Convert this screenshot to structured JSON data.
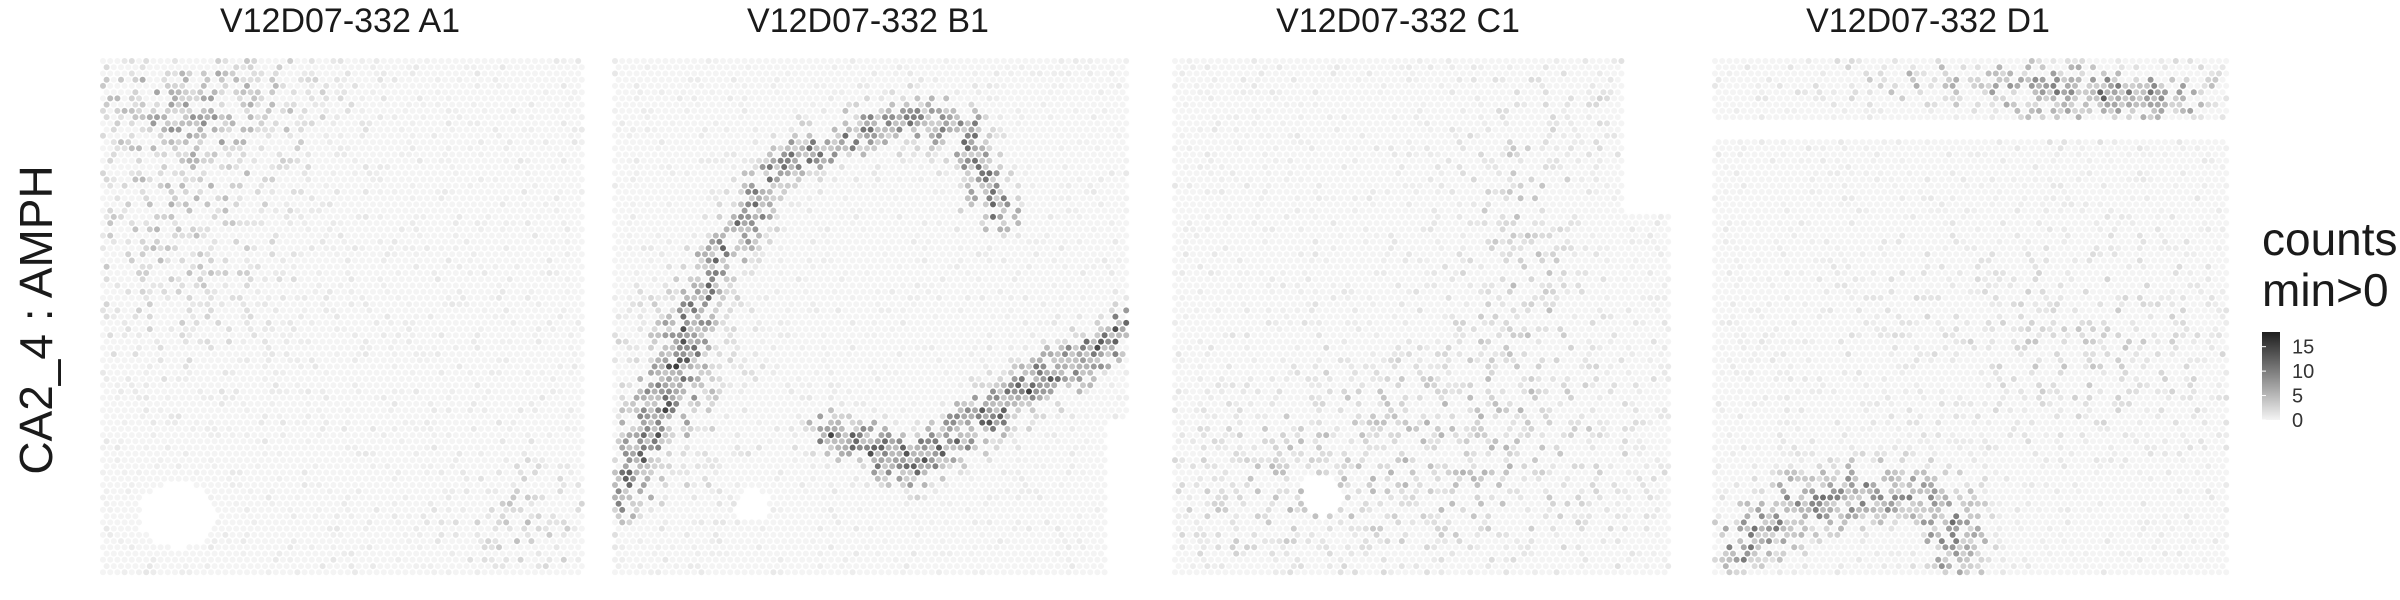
{
  "chart_data": {
    "type": "heatmap",
    "row_label": "CA2_4 : AMPH",
    "panels": [
      {
        "title": "V12D07-332  A1",
        "pattern": "A1"
      },
      {
        "title": "V12D07-332  B1",
        "pattern": "B1"
      },
      {
        "title": "V12D07-332  C1",
        "pattern": "C1"
      },
      {
        "title": "V12D07-332  D1",
        "pattern": "D1"
      }
    ],
    "legend": {
      "title_lines": [
        "counts",
        "min>0"
      ],
      "ticks": [
        15,
        10,
        5,
        0
      ],
      "range": [
        0,
        18
      ],
      "low_color": "#f4f4f4",
      "high_color": "#1e1e1e"
    }
  }
}
